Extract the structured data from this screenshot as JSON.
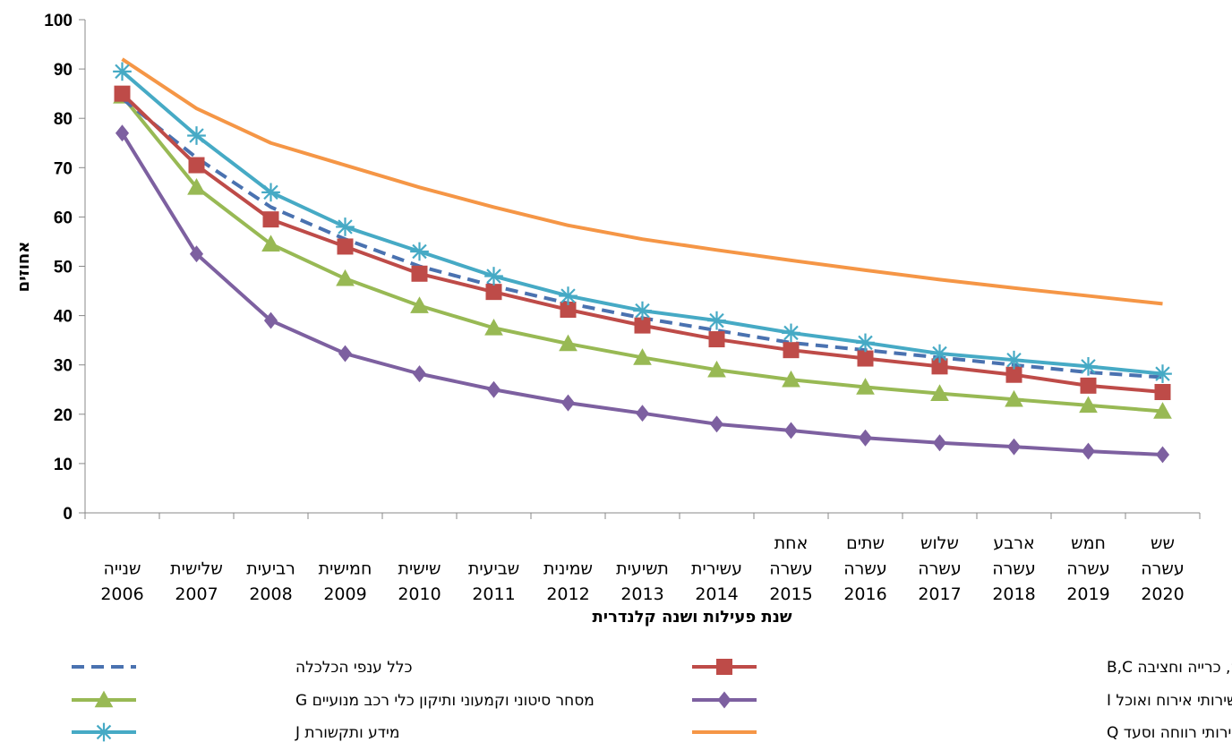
{
  "chart_data": {
    "type": "line",
    "title": "",
    "xlabel": "שנת פעילות ושנה קלנדרית",
    "ylabel": "אחוזים",
    "ylim": [
      0,
      100
    ],
    "yticks": [
      0,
      10,
      20,
      30,
      40,
      50,
      60,
      70,
      80,
      90,
      100
    ],
    "grid": false,
    "legend_position": "bottom",
    "categories": [
      {
        "label": [
          "שנייה",
          "2006"
        ]
      },
      {
        "label": [
          "שלישית",
          "2007"
        ]
      },
      {
        "label": [
          "רביעית",
          "2008"
        ]
      },
      {
        "label": [
          "חמישית",
          "2009"
        ]
      },
      {
        "label": [
          "שישית",
          "2010"
        ]
      },
      {
        "label": [
          "שביעית",
          "2011"
        ]
      },
      {
        "label": [
          "שמינית",
          "2012"
        ]
      },
      {
        "label": [
          "תשיעית",
          "2013"
        ]
      },
      {
        "label": [
          "עשירית",
          "2014"
        ]
      },
      {
        "label": [
          "אחת",
          "עשרה",
          "2015"
        ]
      },
      {
        "label": [
          "שתים",
          "עשרה",
          "2016"
        ]
      },
      {
        "label": [
          "שלוש",
          "עשרה",
          "2017"
        ]
      },
      {
        "label": [
          "ארבע",
          "עשרה",
          "2018"
        ]
      },
      {
        "label": [
          "חמש",
          "עשרה",
          "2019"
        ]
      },
      {
        "label": [
          "שש",
          "עשרה",
          "2020"
        ]
      }
    ],
    "series": [
      {
        "name": "כלל ענפי הכלכלה",
        "color": "#4a72b0",
        "dash": true,
        "marker": "none",
        "values": [
          84,
          72,
          62,
          55.5,
          50,
          46,
          42.5,
          39.5,
          37,
          34.5,
          33,
          31.5,
          30,
          28.5,
          27.5
        ]
      },
      {
        "name": "תעשייה, כרייה וחציבה B,C",
        "color": "#be4b48",
        "dash": false,
        "marker": "square",
        "values": [
          85,
          70.5,
          59.5,
          54,
          48.5,
          44.8,
          41.2,
          38,
          35.2,
          33,
          31.3,
          29.7,
          28,
          25.8,
          24.5
        ]
      },
      {
        "name": "מסחר סיטוני וקמעוני ותיקון כלי רכב מנועיים G",
        "color": "#98b954",
        "dash": false,
        "marker": "triangle",
        "values": [
          84.5,
          66,
          54.5,
          47.5,
          42,
          37.5,
          34.3,
          31.5,
          29,
          27,
          25.5,
          24.2,
          23,
          21.8,
          20.6
        ]
      },
      {
        "name": "שירותי אירוח ואוכל I",
        "color": "#7d60a0",
        "dash": false,
        "marker": "diamond",
        "values": [
          77,
          52.5,
          39,
          32.3,
          28.2,
          25,
          22.3,
          20.2,
          18,
          16.7,
          15.2,
          14.2,
          13.4,
          12.5,
          11.8
        ]
      },
      {
        "name": "מידע ותקשורת J",
        "color": "#46aac5",
        "dash": false,
        "marker": "star",
        "values": [
          89.5,
          76.5,
          65,
          58,
          53,
          48,
          44,
          41,
          39,
          36.5,
          34.5,
          32.3,
          31,
          29.7,
          28.2
        ]
      },
      {
        "name": "שירותי בריאות ושירותי רווחה וסעד Q",
        "color": "#f59646",
        "dash": false,
        "marker": "none",
        "values": [
          92,
          82,
          75,
          70.5,
          66,
          62,
          58.3,
          55.5,
          53.3,
          51.2,
          49.2,
          47.3,
          45.6,
          44,
          42.4
        ]
      }
    ]
  },
  "legend_layout": [
    {
      "series": 0,
      "column": "left",
      "row": 0
    },
    {
      "series": 1,
      "column": "right",
      "row": 0
    },
    {
      "series": 2,
      "column": "left",
      "row": 1
    },
    {
      "series": 3,
      "column": "right",
      "row": 1
    },
    {
      "series": 4,
      "column": "left",
      "row": 2
    },
    {
      "series": 5,
      "column": "right",
      "row": 2
    }
  ]
}
